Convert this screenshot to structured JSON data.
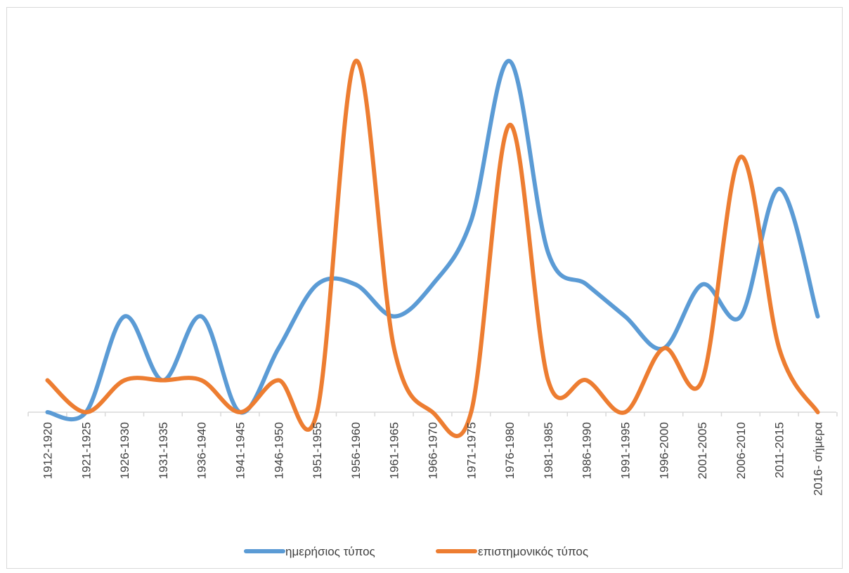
{
  "chart_data": {
    "type": "line",
    "smooth": true,
    "title": "",
    "xlabel": "",
    "ylabel": "",
    "y_axis_visible": false,
    "grid": false,
    "legend_position": "bottom",
    "categories": [
      "1912-1920",
      "1921-1925",
      "1926-1930",
      "1931-1935",
      "1936-1940",
      "1941-1945",
      "1946-1950",
      "1951-1955",
      "1956-1960",
      "1961-1965",
      "1966-1970",
      "1971-1975",
      "1976-1980",
      "1981-1985",
      "1986-1990",
      "1991-1995",
      "1996-2000",
      "2001-2005",
      "2006-2010",
      "2011-2015",
      "2016- σήμερα"
    ],
    "ylim": [
      0,
      11
    ],
    "series": [
      {
        "name": "ημερήσιος τύπος",
        "color": "#5B9BD5",
        "values": [
          0,
          0,
          3,
          1,
          3,
          0,
          2,
          4,
          4,
          3,
          4,
          6,
          11,
          5,
          4,
          3,
          2,
          4,
          3,
          7,
          3
        ]
      },
      {
        "name": "επιστημονικός τύπος",
        "color": "#ED7D31",
        "values": [
          1,
          0,
          1,
          1,
          1,
          0,
          1,
          0,
          11,
          2,
          0,
          0,
          9,
          1,
          1,
          0,
          2,
          1,
          8,
          2,
          0
        ]
      }
    ]
  }
}
